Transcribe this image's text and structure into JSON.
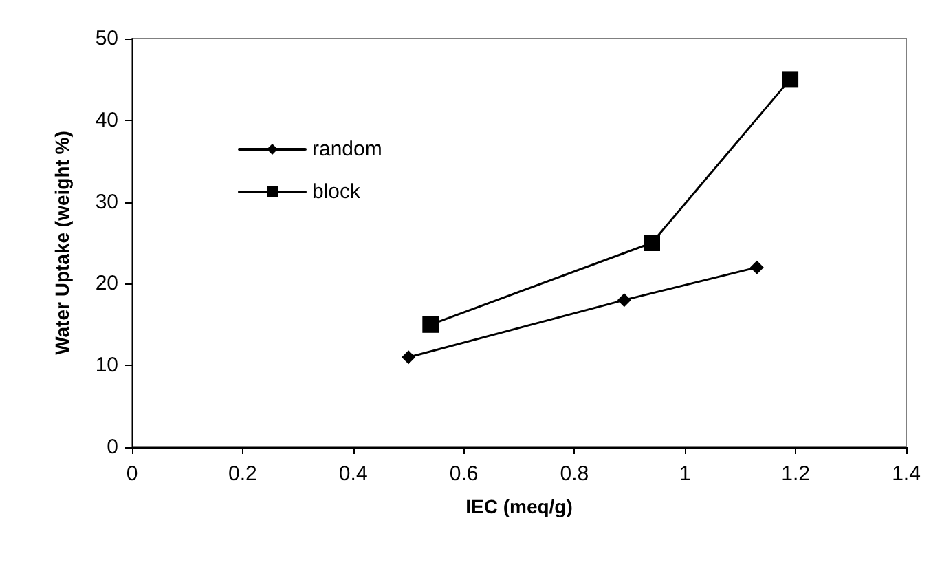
{
  "chart_data": {
    "type": "line",
    "xlabel": "IEC (meq/g)",
    "ylabel": "Water Uptake (weight %)",
    "xlim": [
      0,
      1.4
    ],
    "xticks": [
      0,
      0.2,
      0.4,
      0.6,
      0.8,
      1,
      1.2,
      1.4
    ],
    "ylim": [
      0,
      50
    ],
    "yticks": [
      0,
      10,
      20,
      30,
      40,
      50
    ],
    "grid": false,
    "legend": "top left",
    "line_style": "solid",
    "series": [
      {
        "name": "random",
        "color": "#000000",
        "marker": "diamond",
        "x": [
          0.5,
          0.89,
          1.13
        ],
        "values": [
          11,
          18,
          22
        ]
      },
      {
        "name": "block",
        "color": "#000000",
        "marker": "square",
        "x": [
          0.54,
          0.94,
          1.19
        ],
        "values": [
          15,
          25,
          45
        ]
      }
    ]
  }
}
